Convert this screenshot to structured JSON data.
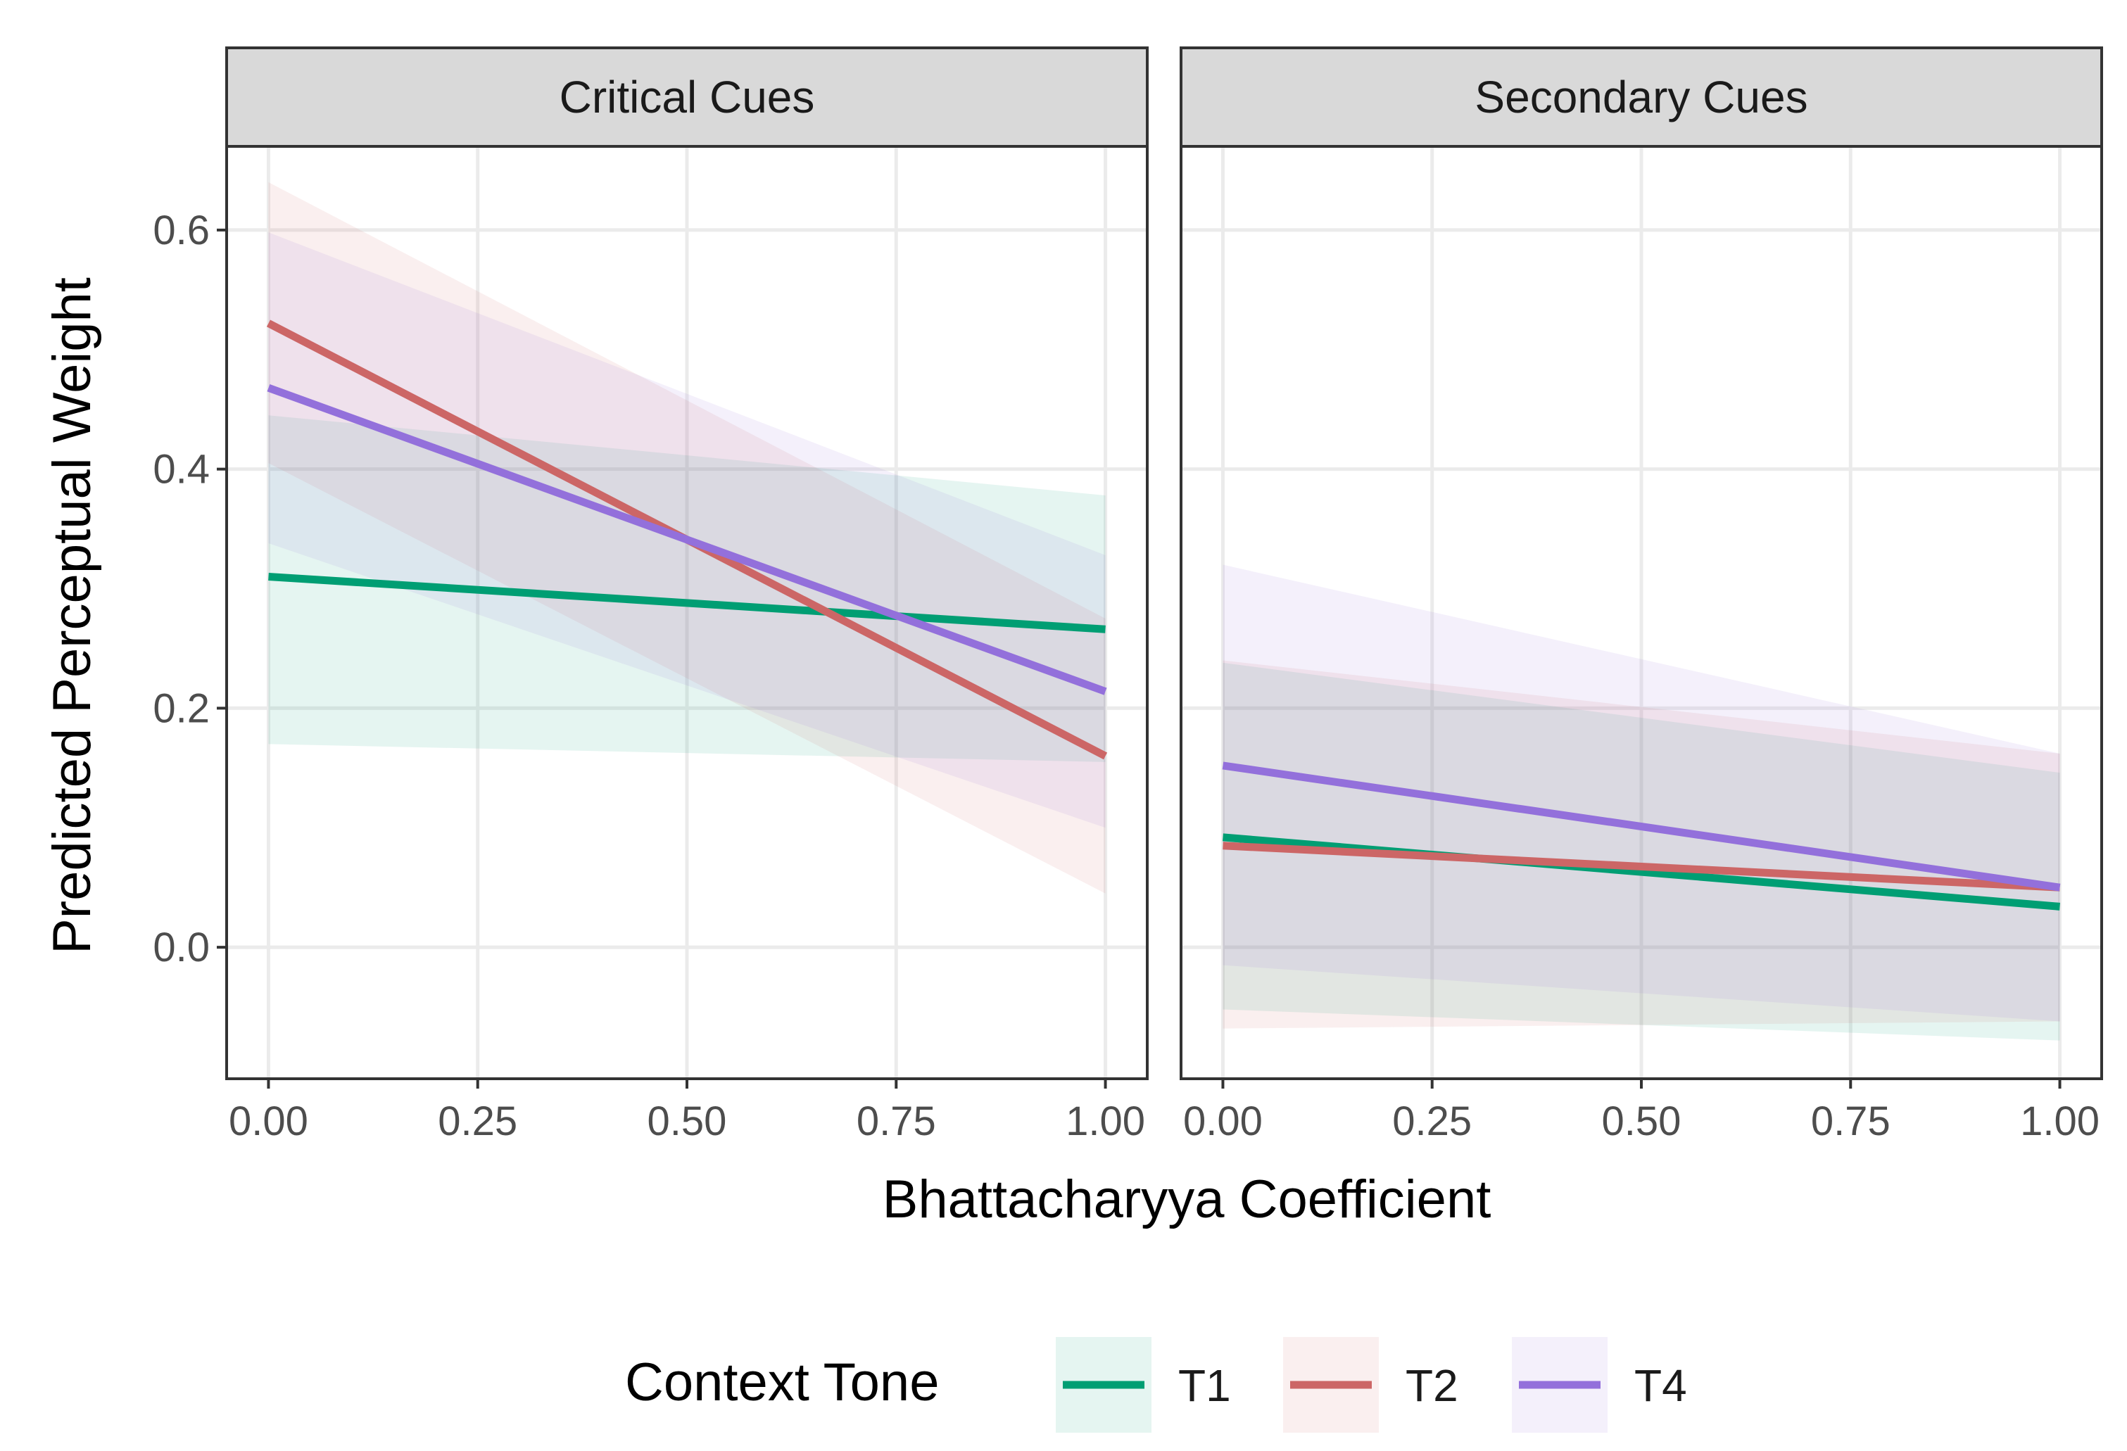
{
  "chart_data": {
    "type": "line",
    "xlabel": "Bhattacharyya Coefficient",
    "ylabel": "Predicted Perceptual Weight",
    "xlim": [
      -0.05,
      1.05
    ],
    "ylim": [
      -0.11,
      0.67
    ],
    "x_ticks": [
      "0.00",
      "0.25",
      "0.50",
      "0.75",
      "1.00"
    ],
    "x_tick_values": [
      0,
      0.25,
      0.5,
      0.75,
      1.0
    ],
    "y_ticks": [
      "0.0",
      "0.2",
      "0.4",
      "0.6"
    ],
    "y_tick_values": [
      0,
      0.2,
      0.4,
      0.6
    ],
    "legend": {
      "title": "Context Tone",
      "position": "bottom",
      "entries": [
        {
          "name": "T1",
          "color": "#009E73"
        },
        {
          "name": "T2",
          "color": "#CC6666"
        },
        {
          "name": "T4",
          "color": "#9370DB"
        }
      ]
    },
    "panels": [
      {
        "label": "Critical Cues",
        "series": [
          {
            "name": "T1",
            "x": [
              0,
              1
            ],
            "y": [
              0.31,
              0.266
            ],
            "lower": [
              0.17,
              0.155
            ],
            "upper": [
              0.445,
              0.378
            ]
          },
          {
            "name": "T2",
            "x": [
              0,
              1
            ],
            "y": [
              0.522,
              0.16
            ],
            "lower": [
              0.405,
              0.045
            ],
            "upper": [
              0.64,
              0.275
            ]
          },
          {
            "name": "T4",
            "x": [
              0,
              1
            ],
            "y": [
              0.468,
              0.214
            ],
            "lower": [
              0.338,
              0.1
            ],
            "upper": [
              0.598,
              0.328
            ]
          }
        ]
      },
      {
        "label": "Secondary Cues",
        "series": [
          {
            "name": "T1",
            "x": [
              0,
              1
            ],
            "y": [
              0.092,
              0.034
            ],
            "lower": [
              -0.052,
              -0.078
            ],
            "upper": [
              0.238,
              0.146
            ]
          },
          {
            "name": "T2",
            "x": [
              0,
              1
            ],
            "y": [
              0.085,
              0.05
            ],
            "lower": [
              -0.068,
              -0.062
            ],
            "upper": [
              0.24,
              0.162
            ]
          },
          {
            "name": "T4",
            "x": [
              0,
              1
            ],
            "y": [
              0.152,
              0.05
            ],
            "lower": [
              -0.015,
              -0.062
            ],
            "upper": [
              0.32,
              0.162
            ]
          }
        ]
      }
    ]
  }
}
